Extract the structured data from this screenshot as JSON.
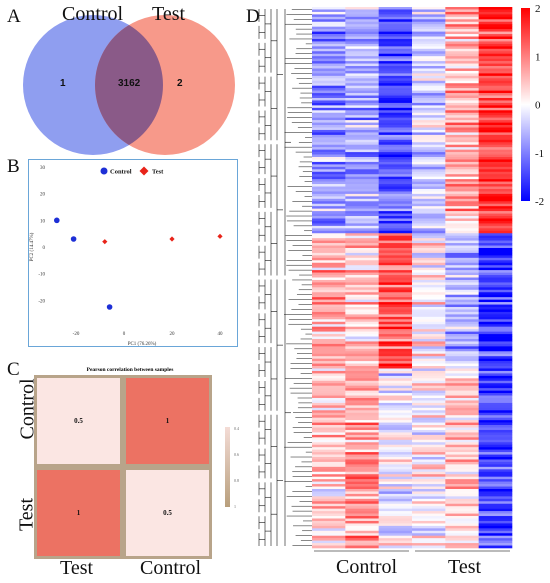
{
  "panels": {
    "a": "A",
    "b": "B",
    "c": "C",
    "d": "D"
  },
  "venn": {
    "left_label": "Control",
    "right_label": "Test",
    "left_only": "1",
    "overlap": "3162",
    "right_only": "2",
    "colors": {
      "left": "#8f9ef0",
      "right": "#f7998a",
      "overlap": "#8a5a88"
    }
  },
  "chart_data": [
    {
      "type": "scatter",
      "panel": "B",
      "title": "",
      "xlabel": "PC1 (76.26%)",
      "ylabel": "PC2 (14.47%)",
      "xlim": [
        -30,
        45
      ],
      "ylim": [
        -30,
        30
      ],
      "xticks": [
        -20,
        0,
        20,
        40
      ],
      "xtick_labels": [
        "-20",
        "0",
        "20",
        "40"
      ],
      "yticks": [
        -20,
        -10,
        0,
        10,
        20,
        30
      ],
      "ytick_labels": [
        "-20",
        "-10",
        "0",
        "10",
        "20",
        "30"
      ],
      "legend": "top-center",
      "series": [
        {
          "name": "Control",
          "marker": "circle",
          "color": "#1d2fd6",
          "x": [
            -28,
            -21,
            -6
          ],
          "y": [
            10,
            3,
            -22.5
          ]
        },
        {
          "name": "Test",
          "marker": "diamond",
          "color": "#e8241a",
          "x": [
            -8,
            20,
            40
          ],
          "y": [
            2,
            3,
            4
          ]
        }
      ]
    },
    {
      "type": "heatmap",
      "panel": "C",
      "title": "Pearson correlation between samples",
      "rows": [
        "Control",
        "Test"
      ],
      "columns": [
        "Test",
        "Control"
      ],
      "values": [
        [
          0.5,
          1
        ],
        [
          1,
          0.5
        ]
      ],
      "cell_labels": [
        [
          "0.5",
          "1"
        ],
        [
          "1",
          "0.5"
        ]
      ],
      "colors": {
        "high": "#ec7263",
        "low": "#fbe6e3",
        "border": "#b8a48a"
      },
      "scale_labels": [
        "0.4",
        "0.6",
        "0.8",
        "1"
      ]
    },
    {
      "type": "heatmap",
      "panel": "D",
      "title": "",
      "column_groups": [
        "Control",
        "Test"
      ],
      "columns_per_group": 3,
      "color_scale": {
        "min": -2,
        "max": 2,
        "low": "#0000ff",
        "mid": "#ffffff",
        "high": "#ff0000"
      },
      "colorbar_ticks": [
        2,
        1,
        0,
        -1,
        -2
      ],
      "colorbar_labels": [
        "2",
        "1",
        "0",
        "-1",
        "-2"
      ]
    }
  ]
}
